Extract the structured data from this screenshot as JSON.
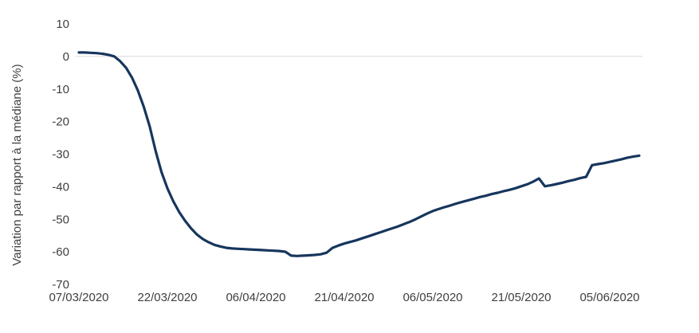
{
  "chart_data": {
    "type": "line",
    "title": "",
    "xlabel": "",
    "ylabel": "Variation par rapport à la médiane (%)",
    "ylim": [
      -70,
      10
    ],
    "y_ticks": [
      10,
      0,
      -10,
      -20,
      -30,
      -40,
      -50,
      -60,
      -70
    ],
    "x_tick_labels": [
      "07/03/2020",
      "22/03/2020",
      "06/04/2020",
      "21/04/2020",
      "06/05/2020",
      "21/05/2020",
      "05/06/2020"
    ],
    "x_tick_day_index": [
      0,
      15,
      30,
      45,
      60,
      75,
      90
    ],
    "grid": "horizontal zero line only",
    "legend_position": "none",
    "colors": {
      "line": "#17365d",
      "zero_gridline": "#d9d9d9",
      "axis_text": "#3f3f3f",
      "background": "#ffffff"
    },
    "series": [
      {
        "name": "Variation par rapport à la médiane (%)",
        "dates": [
          "07/03/2020",
          "08/03/2020",
          "09/03/2020",
          "10/03/2020",
          "11/03/2020",
          "12/03/2020",
          "13/03/2020",
          "14/03/2020",
          "15/03/2020",
          "16/03/2020",
          "17/03/2020",
          "18/03/2020",
          "19/03/2020",
          "20/03/2020",
          "21/03/2020",
          "22/03/2020",
          "23/03/2020",
          "24/03/2020",
          "25/03/2020",
          "26/03/2020",
          "27/03/2020",
          "28/03/2020",
          "29/03/2020",
          "30/03/2020",
          "31/03/2020",
          "01/04/2020",
          "02/04/2020",
          "03/04/2020",
          "04/04/2020",
          "05/04/2020",
          "06/04/2020",
          "07/04/2020",
          "08/04/2020",
          "09/04/2020",
          "10/04/2020",
          "11/04/2020",
          "12/04/2020",
          "13/04/2020",
          "14/04/2020",
          "15/04/2020",
          "16/04/2020",
          "17/04/2020",
          "18/04/2020",
          "19/04/2020",
          "20/04/2020",
          "21/04/2020",
          "22/04/2020",
          "23/04/2020",
          "24/04/2020",
          "25/04/2020",
          "26/04/2020",
          "27/04/2020",
          "28/04/2020",
          "29/04/2020",
          "30/04/2020",
          "01/05/2020",
          "02/05/2020",
          "03/05/2020",
          "04/05/2020",
          "05/05/2020",
          "06/05/2020",
          "07/05/2020",
          "08/05/2020",
          "09/05/2020",
          "10/05/2020",
          "11/05/2020",
          "12/05/2020",
          "13/05/2020",
          "14/05/2020",
          "15/05/2020",
          "16/05/2020",
          "17/05/2020",
          "18/05/2020",
          "19/05/2020",
          "20/05/2020",
          "21/05/2020",
          "22/05/2020",
          "23/05/2020",
          "24/05/2020",
          "25/05/2020",
          "26/05/2020",
          "27/05/2020",
          "28/05/2020",
          "29/05/2020",
          "30/05/2020",
          "31/05/2020",
          "01/06/2020",
          "02/06/2020",
          "03/06/2020",
          "04/06/2020",
          "05/06/2020",
          "06/06/2020",
          "07/06/2020",
          "08/06/2020",
          "09/06/2020",
          "10/06/2020"
        ],
        "values": [
          1.2,
          1.2,
          1.1,
          1.0,
          0.8,
          0.5,
          0.0,
          -1.5,
          -3.5,
          -6.5,
          -10.5,
          -15.5,
          -21.5,
          -29.0,
          -35.5,
          -40.5,
          -44.5,
          -47.8,
          -50.5,
          -52.8,
          -54.7,
          -56.1,
          -57.1,
          -57.9,
          -58.4,
          -58.8,
          -59.0,
          -59.1,
          -59.2,
          -59.3,
          -59.4,
          -59.5,
          -59.6,
          -59.7,
          -59.8,
          -60.0,
          -61.2,
          -61.3,
          -61.2,
          -61.1,
          -61.0,
          -60.8,
          -60.3,
          -58.8,
          -58.1,
          -57.5,
          -57.0,
          -56.5,
          -55.9,
          -55.3,
          -54.7,
          -54.1,
          -53.5,
          -52.9,
          -52.3,
          -51.6,
          -50.9,
          -50.1,
          -49.2,
          -48.3,
          -47.5,
          -46.9,
          -46.3,
          -45.8,
          -45.2,
          -44.7,
          -44.2,
          -43.7,
          -43.2,
          -42.8,
          -42.3,
          -41.9,
          -41.4,
          -41.0,
          -40.5,
          -39.9,
          -39.3,
          -38.5,
          -37.5,
          -39.9,
          -39.6,
          -39.2,
          -38.8,
          -38.3,
          -37.9,
          -37.4,
          -37.0,
          -33.4,
          -33.1,
          -32.8,
          -32.4,
          -32.0,
          -31.6,
          -31.1,
          -30.8,
          -30.5
        ]
      }
    ]
  }
}
